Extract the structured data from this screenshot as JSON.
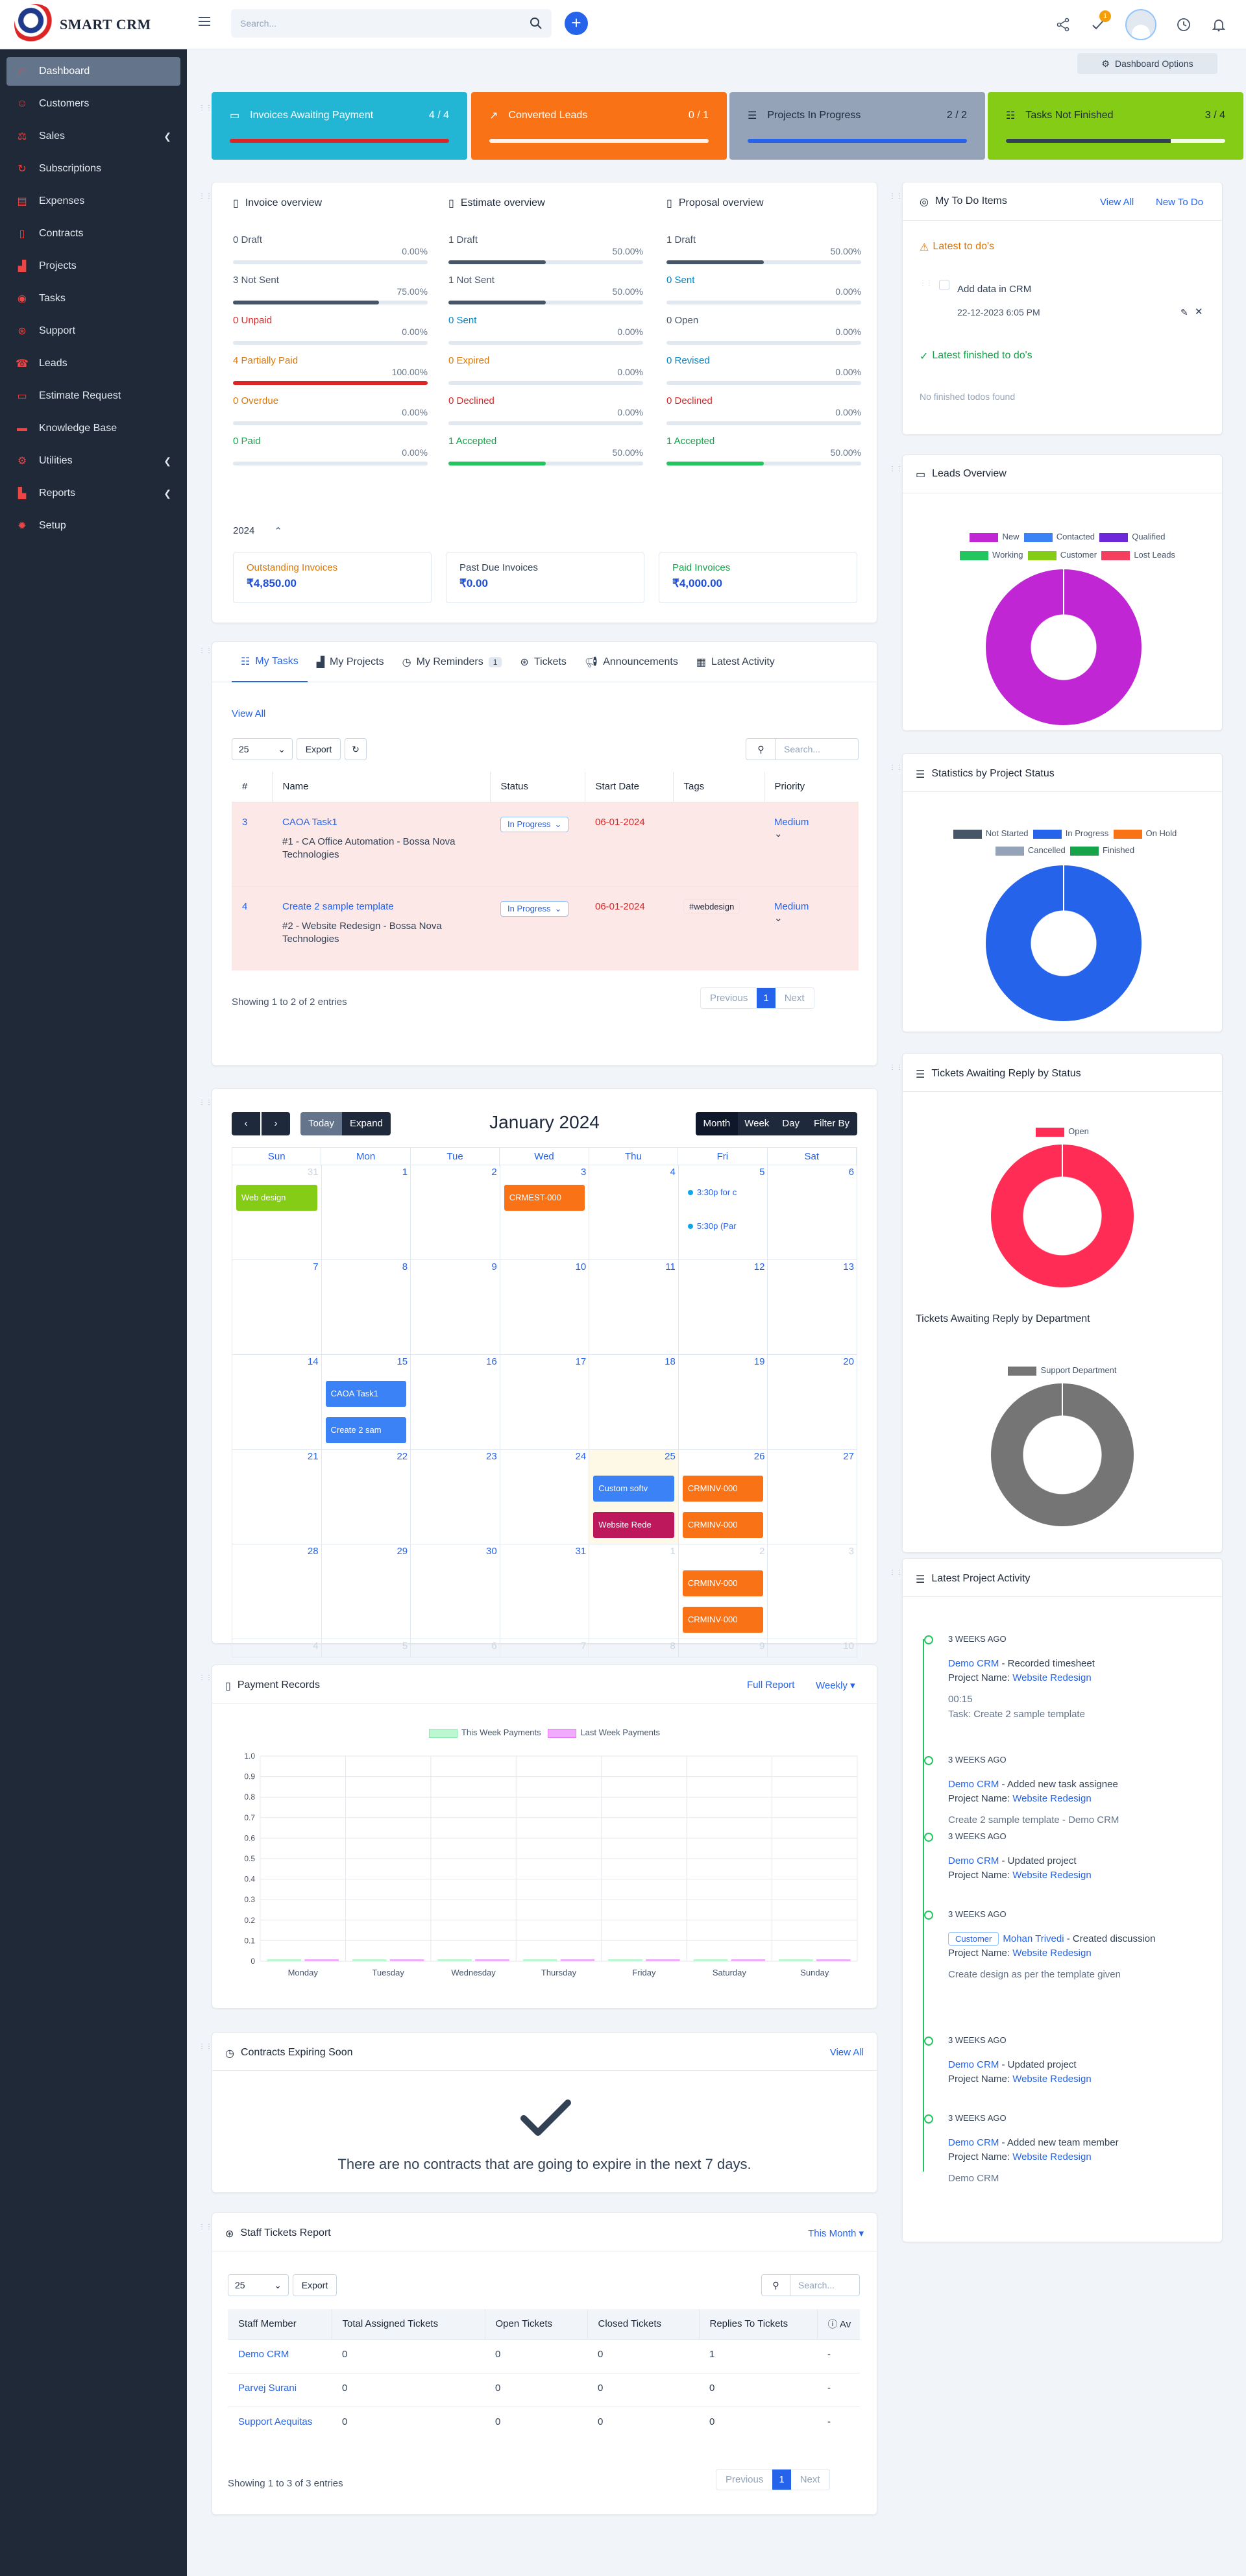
{
  "topbar": {
    "logo_text": "SMART CRM",
    "search_placeholder": "Search...",
    "notification_count": "1"
  },
  "sidebar": {
    "items": [
      {
        "label": "Dashboard",
        "icon": "home-icon",
        "active": true
      },
      {
        "label": "Customers",
        "icon": "user-icon"
      },
      {
        "label": "Sales",
        "icon": "balance-scale-icon",
        "chevron": true
      },
      {
        "label": "Subscriptions",
        "icon": "refresh-icon"
      },
      {
        "label": "Expenses",
        "icon": "receipt-icon"
      },
      {
        "label": "Contracts",
        "icon": "document-icon"
      },
      {
        "label": "Projects",
        "icon": "chart-icon"
      },
      {
        "label": "Tasks",
        "icon": "check-circle-icon"
      },
      {
        "label": "Support",
        "icon": "lifebuoy-icon"
      },
      {
        "label": "Leads",
        "icon": "tty-icon"
      },
      {
        "label": "Estimate Request",
        "icon": "file-icon"
      },
      {
        "label": "Knowledge Base",
        "icon": "folder-icon"
      },
      {
        "label": "Utilities",
        "icon": "cogs-icon",
        "chevron": true
      },
      {
        "label": "Reports",
        "icon": "area-chart-icon",
        "chevron": true
      },
      {
        "label": "Setup",
        "icon": "gear-icon"
      }
    ]
  },
  "dashboard_options_label": "Dashboard Options",
  "stats": [
    {
      "label": "Invoices Awaiting Payment",
      "value": "4 / 4",
      "color": "#22b5d4",
      "bar_color": "#dc2626",
      "pct": 100,
      "icon": "invoice-icon"
    },
    {
      "label": "Converted Leads",
      "value": "0 / 1",
      "color": "#f97316",
      "bar_color": "#ffffff",
      "pct": 0,
      "icon": "trend-icon"
    },
    {
      "label": "Projects In Progress",
      "value": "2 / 2",
      "color": "#94a3b8",
      "bar_color": "#2563eb",
      "pct": 100,
      "icon": "sliders-icon"
    },
    {
      "label": "Tasks Not Finished",
      "value": "3 / 4",
      "color": "#84cc16",
      "bar_color": "#334155",
      "pct": 75,
      "icon": "tasks-icon"
    }
  ],
  "overview": {
    "invoice": {
      "title": "Invoice overview",
      "rows": [
        {
          "label": "0 Draft",
          "pct": "0.00%",
          "fill": 0,
          "color": "#475569",
          "text_color": "#475569"
        },
        {
          "label": "3 Not Sent",
          "pct": "75.00%",
          "fill": 75,
          "color": "#475569",
          "text_color": "#475569"
        },
        {
          "label": "0 Unpaid",
          "pct": "0.00%",
          "fill": 0,
          "color": "#dc2626",
          "text_color": "#dc2626"
        },
        {
          "label": "4 Partially Paid",
          "pct": "100.00%",
          "fill": 100,
          "color": "#dc2626",
          "text_color": "#d97706"
        },
        {
          "label": "0 Overdue",
          "pct": "0.00%",
          "fill": 0,
          "color": "#d97706",
          "text_color": "#d97706"
        },
        {
          "label": "0 Paid",
          "pct": "0.00%",
          "fill": 0,
          "color": "#16a34a",
          "text_color": "#16a34a"
        }
      ]
    },
    "estimate": {
      "title": "Estimate overview",
      "rows": [
        {
          "label": "1 Draft",
          "pct": "50.00%",
          "fill": 50,
          "color": "#475569",
          "text_color": "#475569"
        },
        {
          "label": "1 Not Sent",
          "pct": "50.00%",
          "fill": 50,
          "color": "#475569",
          "text_color": "#475569"
        },
        {
          "label": "0 Sent",
          "pct": "0.00%",
          "fill": 0,
          "color": "#2563eb",
          "text_color": "#0284c7"
        },
        {
          "label": "0 Expired",
          "pct": "0.00%",
          "fill": 0,
          "color": "#d97706",
          "text_color": "#d97706"
        },
        {
          "label": "0 Declined",
          "pct": "0.00%",
          "fill": 0,
          "color": "#dc2626",
          "text_color": "#dc2626"
        },
        {
          "label": "1 Accepted",
          "pct": "50.00%",
          "fill": 50,
          "color": "#22c55e",
          "text_color": "#16a34a"
        }
      ]
    },
    "proposal": {
      "title": "Proposal overview",
      "rows": [
        {
          "label": "1 Draft",
          "pct": "50.00%",
          "fill": 50,
          "color": "#475569",
          "text_color": "#475569"
        },
        {
          "label": "0 Sent",
          "pct": "0.00%",
          "fill": 0,
          "color": "#2563eb",
          "text_color": "#0284c7"
        },
        {
          "label": "0 Open",
          "pct": "0.00%",
          "fill": 0,
          "color": "#475569",
          "text_color": "#475569"
        },
        {
          "label": "0 Revised",
          "pct": "0.00%",
          "fill": 0,
          "color": "#0284c7",
          "text_color": "#0284c7"
        },
        {
          "label": "0 Declined",
          "pct": "0.00%",
          "fill": 0,
          "color": "#dc2626",
          "text_color": "#dc2626"
        },
        {
          "label": "1 Accepted",
          "pct": "50.00%",
          "fill": 50,
          "color": "#22c55e",
          "text_color": "#16a34a"
        }
      ]
    },
    "year": "2024",
    "summary": [
      {
        "label": "Outstanding Invoices",
        "value": "₹4,850.00",
        "label_color": "#d97706"
      },
      {
        "label": "Past Due Invoices",
        "value": "₹0.00",
        "label_color": "#475569"
      },
      {
        "label": "Paid Invoices",
        "value": "₹4,000.00",
        "label_color": "#16a34a"
      }
    ]
  },
  "todo": {
    "title": "My To Do Items",
    "view_all": "View All",
    "new_todo": "New To Do",
    "latest_label": "Latest to do's",
    "item_text": "Add data in CRM",
    "item_date": "22-12-2023 6:05 PM",
    "finished_label": "Latest finished to do's",
    "empty_text": "No finished todos found"
  },
  "tasks_panel": {
    "tabs": [
      {
        "label": "My Tasks",
        "icon": "tasks-icon",
        "active": true
      },
      {
        "label": "My Projects",
        "icon": "chart-icon"
      },
      {
        "label": "My Reminders",
        "icon": "clock-icon",
        "count": "1"
      },
      {
        "label": "Tickets",
        "icon": "lifebuoy-icon"
      },
      {
        "label": "Announcements",
        "icon": "bullhorn-icon"
      },
      {
        "label": "Latest Activity",
        "icon": "calendar-icon"
      }
    ],
    "view_all": "View All",
    "page_size": "25",
    "export_label": "Export",
    "search_placeholder": "Search...",
    "columns": [
      "#",
      "Name",
      "Status",
      "Start Date",
      "Tags",
      "Priority"
    ],
    "rows": [
      {
        "id": "3",
        "name": "CAOA Task1",
        "sub": "#1 - CA Office Automation - Bossa Nova Technologies",
        "status": "In Progress",
        "start": "06-01-2024",
        "tags": "",
        "priority": "Medium"
      },
      {
        "id": "4",
        "name": "Create 2 sample template",
        "sub": "#2 - Website Redesign - Bossa Nova Technologies",
        "status": "In Progress",
        "start": "06-01-2024",
        "tags": "#webdesign",
        "priority": "Medium"
      }
    ],
    "showing": "Showing 1 to 2 of 2 entries",
    "pager": {
      "prev": "Previous",
      "page": "1",
      "next": "Next"
    }
  },
  "calendar": {
    "title": "January 2024",
    "today_label": "Today",
    "expand_label": "Expand",
    "views": [
      "Month",
      "Week",
      "Day",
      "Filter By"
    ],
    "days": [
      "Sun",
      "Mon",
      "Tue",
      "Wed",
      "Thu",
      "Fri",
      "Sat"
    ],
    "weeks": [
      [
        {
          "n": "31",
          "o": true
        },
        {
          "n": "1"
        },
        {
          "n": "2"
        },
        {
          "n": "3"
        },
        {
          "n": "4"
        },
        {
          "n": "5"
        },
        {
          "n": "6"
        }
      ],
      [
        {
          "n": "7"
        },
        {
          "n": "8"
        },
        {
          "n": "9"
        },
        {
          "n": "10"
        },
        {
          "n": "11"
        },
        {
          "n": "12"
        },
        {
          "n": "13"
        }
      ],
      [
        {
          "n": "14"
        },
        {
          "n": "15"
        },
        {
          "n": "16"
        },
        {
          "n": "17"
        },
        {
          "n": "18"
        },
        {
          "n": "19"
        },
        {
          "n": "20"
        }
      ],
      [
        {
          "n": "21"
        },
        {
          "n": "22"
        },
        {
          "n": "23"
        },
        {
          "n": "24"
        },
        {
          "n": "25",
          "today": true
        },
        {
          "n": "26"
        },
        {
          "n": "27"
        }
      ],
      [
        {
          "n": "28"
        },
        {
          "n": "29"
        },
        {
          "n": "30"
        },
        {
          "n": "31"
        },
        {
          "n": "1",
          "o": true
        },
        {
          "n": "2",
          "o": true
        },
        {
          "n": "3",
          "o": true
        }
      ],
      [
        {
          "n": "4",
          "o": true
        },
        {
          "n": "5",
          "o": true
        },
        {
          "n": "6",
          "o": true
        },
        {
          "n": "7",
          "o": true
        },
        {
          "n": "8",
          "o": true
        },
        {
          "n": "9",
          "o": true
        },
        {
          "n": "10",
          "o": true
        }
      ]
    ],
    "events": {
      "web_design": "Web design",
      "crmest": "CRMEST-000",
      "dot1": "3:30p for c",
      "dot2": "5:30p (Par",
      "caoa": "CAOA Task1",
      "create": "Create 2 sam",
      "custom": "Custom softv",
      "website": "Website Rede",
      "inv1": "CRMINV-000",
      "inv2": "CRMINV-000",
      "inv3": "CRMINV-000",
      "inv4": "CRMINV-000"
    }
  },
  "payments": {
    "title": "Payment Records",
    "full_report": "Full Report",
    "period": "Weekly"
  },
  "chart_data": [
    {
      "type": "bar",
      "title": "Payment Records",
      "categories": [
        "Monday",
        "Tuesday",
        "Wednesday",
        "Thursday",
        "Friday",
        "Saturday",
        "Sunday"
      ],
      "series": [
        {
          "name": "This Week Payments",
          "values": [
            0,
            0,
            0,
            0,
            0,
            0,
            0
          ],
          "color": "#bbf7d0"
        },
        {
          "name": "Last Week Payments",
          "values": [
            0,
            0,
            0,
            0,
            0,
            0,
            0
          ],
          "color": "#f0abfc"
        }
      ],
      "ylim": [
        0,
        1.0
      ],
      "yticks": [
        "1.0",
        "0.9",
        "0.8",
        "0.7",
        "0.6",
        "0.5",
        "0.4",
        "0.3",
        "0.2",
        "0.1",
        "0"
      ],
      "legend_position": "top"
    },
    {
      "type": "pie",
      "title": "Leads Overview",
      "categories": [
        "New",
        "Contacted",
        "Qualified",
        "Working",
        "Customer",
        "Lost Leads"
      ],
      "values": [
        1,
        0,
        0,
        0,
        0,
        0
      ],
      "colors": [
        "#c026d3",
        "#3b82f6",
        "#6d28d9",
        "#22c55e",
        "#84cc16",
        "#f43f5e"
      ]
    },
    {
      "type": "pie",
      "title": "Statistics by Project Status",
      "categories": [
        "Not Started",
        "In Progress",
        "On Hold",
        "Cancelled",
        "Finished"
      ],
      "values": [
        0,
        2,
        0,
        0,
        0
      ],
      "colors": [
        "#475569",
        "#2563eb",
        "#f97316",
        "#94a3b8",
        "#16a34a"
      ]
    },
    {
      "type": "pie",
      "title": "Tickets Awaiting Reply by Status",
      "categories": [
        "Open"
      ],
      "values": [
        1
      ],
      "colors": [
        "#ff2d55"
      ]
    },
    {
      "type": "pie",
      "title": "Tickets Awaiting Reply by Department",
      "categories": [
        "Support Department"
      ],
      "values": [
        1
      ],
      "colors": [
        "#757575"
      ]
    }
  ],
  "contracts": {
    "title": "Contracts Expiring Soon",
    "view_all": "View All",
    "empty": "There are no contracts that are going to expire in the next 7 days."
  },
  "staff_tickets": {
    "title": "Staff Tickets Report",
    "period": "This Month",
    "page_size": "25",
    "export_label": "Export",
    "search_placeholder": "Search...",
    "columns": [
      "Staff Member",
      "Total Assigned Tickets",
      "Open Tickets",
      "Closed Tickets",
      "Replies To Tickets",
      "Av"
    ],
    "rows": [
      {
        "name": "Demo CRM",
        "total": "0",
        "open": "0",
        "closed": "0",
        "replies": "1",
        "avg": "-"
      },
      {
        "name": "Parvej Surani",
        "total": "0",
        "open": "0",
        "closed": "0",
        "replies": "0",
        "avg": "-"
      },
      {
        "name": "Support Aequitas",
        "total": "0",
        "open": "0",
        "closed": "0",
        "replies": "0",
        "avg": "-"
      }
    ],
    "showing": "Showing 1 to 3 of 3 entries",
    "pager": {
      "prev": "Previous",
      "page": "1",
      "next": "Next"
    }
  },
  "leads": {
    "title": "Leads Overview"
  },
  "project_status": {
    "title": "Statistics by Project Status"
  },
  "tickets_status": {
    "title": "Tickets Awaiting Reply by Status",
    "dept_title": "Tickets Awaiting Reply by Department"
  },
  "activity": {
    "title": "Latest Project Activity",
    "items": [
      {
        "time": "3 WEEKS AGO",
        "who": "Demo CRM",
        "action": " - Recorded timesheet",
        "project_label": "Project Name: ",
        "project": "Website Redesign",
        "extra1": "00:15",
        "extra2": "Task: Create 2 sample template"
      },
      {
        "time": "3 WEEKS AGO",
        "who": "Demo CRM",
        "action": " - Added new task assignee",
        "project_label": "Project Name: ",
        "project": "Website Redesign",
        "extra1": "Create 2 sample template - Demo CRM"
      },
      {
        "time": "3 WEEKS AGO",
        "who": "Demo CRM",
        "action": " - Updated project",
        "project_label": "Project Name: ",
        "project": "Website Redesign"
      },
      {
        "time": "3 WEEKS AGO",
        "badge": "Customer",
        "who": "Mohan Trivedi",
        "action": " - Created discussion",
        "project_label": "Project Name: ",
        "project": "Website Redesign",
        "extra1": "Create design as per the template given"
      },
      {
        "time": "3 WEEKS AGO",
        "who": "Demo CRM",
        "action": " - Updated project",
        "project_label": "Project Name: ",
        "project": "Website Redesign"
      },
      {
        "time": "3 WEEKS AGO",
        "who": "Demo CRM",
        "action": " - Added new team member",
        "project_label": "Project Name: ",
        "project": "Website Redesign",
        "extra1": "Demo CRM"
      }
    ]
  }
}
